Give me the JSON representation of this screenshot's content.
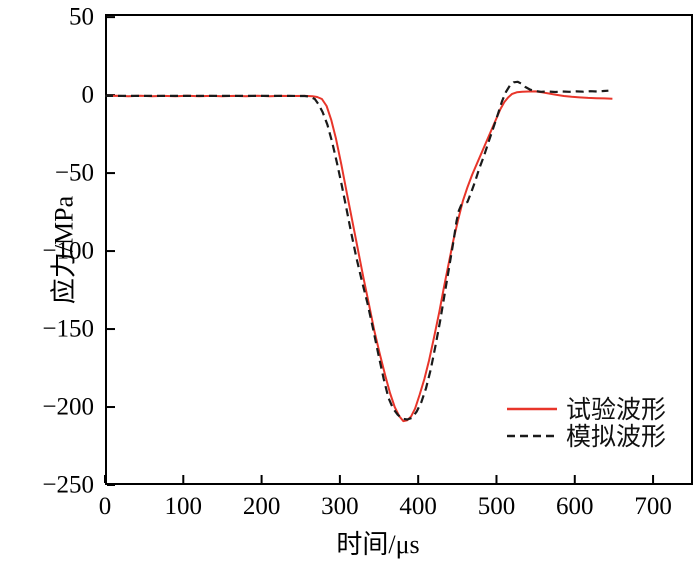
{
  "figure": {
    "background": "#ffffff",
    "axis_color": "#000000",
    "tick_length": 8
  },
  "chart_data": {
    "type": "line",
    "title": "",
    "xlabel": "时间/μs",
    "ylabel": "应力/MPa",
    "xlim": [
      0,
      751
    ],
    "ylim": [
      -250,
      52
    ],
    "x_ticks": [
      0,
      100,
      200,
      300,
      400,
      500,
      600,
      700
    ],
    "y_ticks": [
      50,
      0,
      -50,
      -100,
      -150,
      -200,
      -250
    ],
    "grid": false,
    "legend_position": "lower-right",
    "series": [
      {
        "name": "试验波形",
        "style": "solid",
        "color": "#e8352a",
        "width": 2,
        "points": [
          [
            0,
            -0.6
          ],
          [
            15,
            -0.4
          ],
          [
            30,
            -0.8
          ],
          [
            45,
            -0.4
          ],
          [
            60,
            -0.8
          ],
          [
            75,
            -0.5
          ],
          [
            90,
            -0.8
          ],
          [
            105,
            -0.4
          ],
          [
            120,
            -0.7
          ],
          [
            135,
            -0.5
          ],
          [
            150,
            -0.8
          ],
          [
            165,
            -0.5
          ],
          [
            180,
            -0.7
          ],
          [
            195,
            -0.4
          ],
          [
            210,
            -0.7
          ],
          [
            225,
            -0.5
          ],
          [
            240,
            -0.6
          ],
          [
            255,
            -0.5
          ],
          [
            265,
            -0.7
          ],
          [
            271,
            -1.2
          ],
          [
            277,
            -2.5
          ],
          [
            283,
            -7
          ],
          [
            289,
            -16
          ],
          [
            295,
            -28
          ],
          [
            302,
            -45
          ],
          [
            309,
            -63
          ],
          [
            316,
            -81
          ],
          [
            323,
            -99
          ],
          [
            330,
            -117
          ],
          [
            337,
            -134
          ],
          [
            344,
            -151
          ],
          [
            351,
            -166
          ],
          [
            358,
            -180
          ],
          [
            364,
            -191
          ],
          [
            370,
            -200
          ],
          [
            376,
            -206
          ],
          [
            381,
            -209
          ],
          [
            386,
            -208.5
          ],
          [
            391,
            -206
          ],
          [
            396,
            -201
          ],
          [
            402,
            -192
          ],
          [
            408,
            -182
          ],
          [
            414,
            -170
          ],
          [
            420,
            -156
          ],
          [
            427,
            -139
          ],
          [
            433,
            -123
          ],
          [
            439,
            -108
          ],
          [
            445,
            -93
          ],
          [
            451,
            -80
          ],
          [
            457,
            -68
          ],
          [
            463,
            -59
          ],
          [
            469,
            -51
          ],
          [
            475,
            -44
          ],
          [
            481,
            -37
          ],
          [
            487,
            -30
          ],
          [
            493,
            -23
          ],
          [
            499,
            -16
          ],
          [
            505,
            -9
          ],
          [
            510,
            -4.5
          ],
          [
            515,
            -1.5
          ],
          [
            520,
            0.8
          ],
          [
            526,
            1.8
          ],
          [
            533,
            2.1
          ],
          [
            541,
            2.3
          ],
          [
            550,
            2.4
          ],
          [
            558,
            1.8
          ],
          [
            567,
            1
          ],
          [
            576,
            0.2
          ],
          [
            586,
            -0.6
          ],
          [
            596,
            -1.1
          ],
          [
            606,
            -1.5
          ],
          [
            617,
            -1.8
          ],
          [
            628,
            -2
          ],
          [
            638,
            -2.1
          ],
          [
            648,
            -2.3
          ]
        ]
      },
      {
        "name": "模拟波形",
        "style": "dashed",
        "color": "#1a1a1a",
        "width": 2.2,
        "points": [
          [
            0,
            -0.5
          ],
          [
            40,
            -0.5
          ],
          [
            80,
            -0.5
          ],
          [
            120,
            -0.5
          ],
          [
            160,
            -0.5
          ],
          [
            200,
            -0.5
          ],
          [
            235,
            -0.5
          ],
          [
            255,
            -0.6
          ],
          [
            262,
            -1
          ],
          [
            268,
            -2.5
          ],
          [
            273,
            -6
          ],
          [
            278,
            -11
          ],
          [
            284,
            -19
          ],
          [
            290,
            -30
          ],
          [
            296,
            -43
          ],
          [
            302,
            -57
          ],
          [
            308,
            -72
          ],
          [
            314,
            -87
          ],
          [
            321,
            -104
          ],
          [
            328,
            -119
          ],
          [
            335,
            -133
          ],
          [
            342,
            -149
          ],
          [
            349,
            -166
          ],
          [
            356,
            -182
          ],
          [
            362,
            -194
          ],
          [
            368,
            -201
          ],
          [
            374,
            -205
          ],
          [
            380,
            -207.5
          ],
          [
            386,
            -208
          ],
          [
            392,
            -207
          ],
          [
            398,
            -203
          ],
          [
            404,
            -197
          ],
          [
            410,
            -188
          ],
          [
            416,
            -176
          ],
          [
            422,
            -161
          ],
          [
            428,
            -145
          ],
          [
            434,
            -127
          ],
          [
            440,
            -109
          ],
          [
            445,
            -94
          ],
          [
            449,
            -81
          ],
          [
            452,
            -74
          ],
          [
            455,
            -70.5
          ],
          [
            459,
            -69.5
          ],
          [
            463,
            -68.5
          ],
          [
            468,
            -62
          ],
          [
            473,
            -55
          ],
          [
            478,
            -47
          ],
          [
            484,
            -39
          ],
          [
            490,
            -30
          ],
          [
            496,
            -21
          ],
          [
            502,
            -12
          ],
          [
            507,
            -4
          ],
          [
            512,
            2
          ],
          [
            517,
            6
          ],
          [
            522,
            8.2
          ],
          [
            527,
            8.5
          ],
          [
            532,
            7.3
          ],
          [
            537,
            5.2
          ],
          [
            543,
            3.5
          ],
          [
            549,
            2.6
          ],
          [
            557,
            2.1
          ],
          [
            566,
            2.3
          ],
          [
            575,
            2
          ],
          [
            584,
            2.3
          ],
          [
            593,
            2.1
          ],
          [
            602,
            2.4
          ],
          [
            611,
            2.2
          ],
          [
            620,
            2.5
          ],
          [
            629,
            2.3
          ],
          [
            637,
            2.6
          ],
          [
            643,
            2.8
          ]
        ]
      }
    ]
  }
}
